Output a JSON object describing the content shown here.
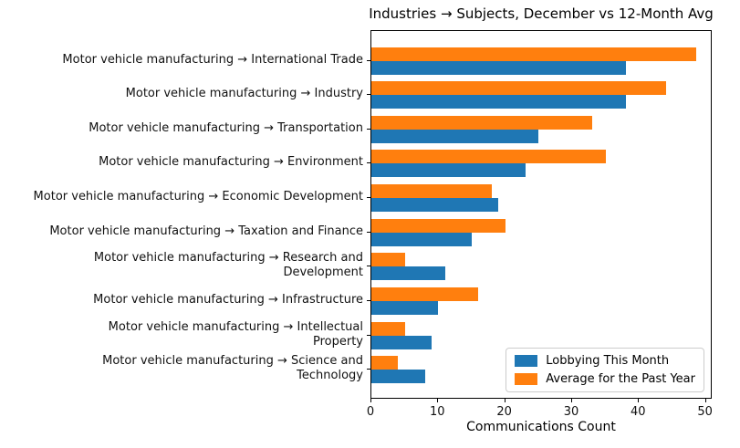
{
  "chart_data": {
    "type": "bar",
    "orientation": "horizontal",
    "title": "Industries → Subjects, December vs 12-Month Avg",
    "xlabel": "Communications Count",
    "ylabel": "",
    "xlim": [
      0,
      51
    ],
    "xticks": [
      0,
      10,
      20,
      30,
      40,
      50
    ],
    "grid": false,
    "legend_position": "lower right",
    "categories": [
      "Motor vehicle manufacturing → International Trade",
      "Motor vehicle manufacturing → Industry",
      "Motor vehicle manufacturing → Transportation",
      "Motor vehicle manufacturing → Environment",
      "Motor vehicle manufacturing → Economic Development",
      "Motor vehicle manufacturing → Taxation and Finance",
      "Motor vehicle manufacturing → Research and\nDevelopment",
      "Motor vehicle manufacturing → Infrastructure",
      "Motor vehicle manufacturing → Intellectual\nProperty",
      "Motor vehicle manufacturing → Science and\nTechnology"
    ],
    "series": [
      {
        "name": "Lobbying This Month",
        "color": "#1f77b4",
        "values": [
          38,
          38,
          25,
          23,
          19,
          15,
          11,
          10,
          9,
          8
        ]
      },
      {
        "name": "Average for the Past Year",
        "color": "#ff7f0e",
        "values": [
          48.5,
          44,
          33,
          35,
          18,
          20,
          5,
          16,
          5,
          4
        ]
      }
    ]
  }
}
